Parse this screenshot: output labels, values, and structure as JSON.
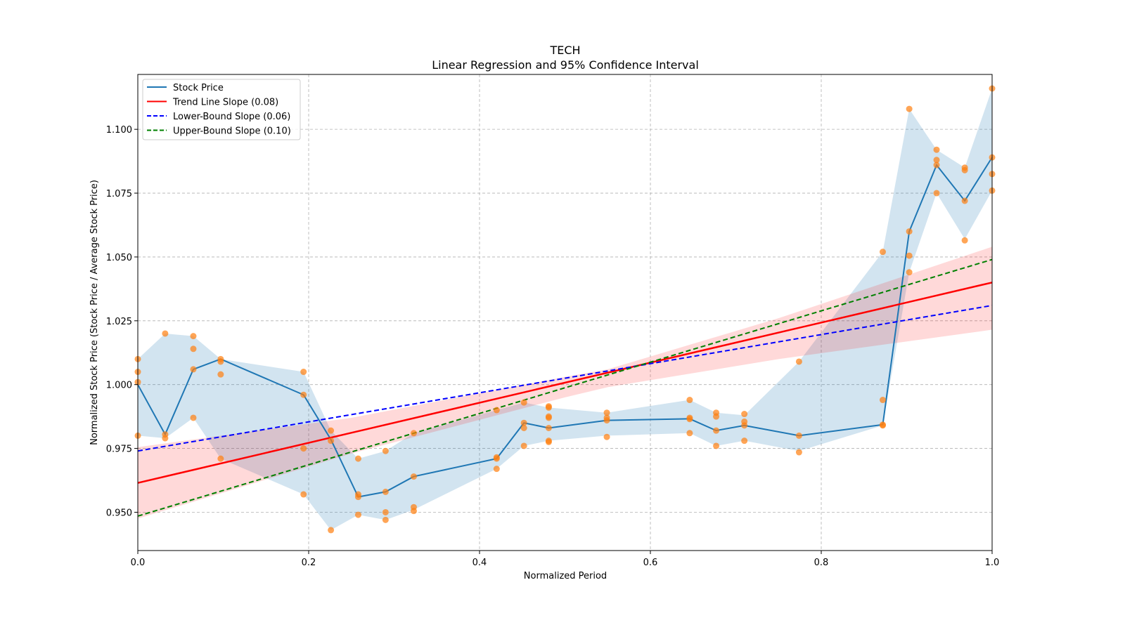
{
  "chart_data": {
    "type": "line",
    "title": "TECH",
    "subtitle": "Linear Regression and 95% Confidence Interval",
    "xlabel": "Normalized Period",
    "ylabel": "Normalized Stock Price (Stock Price / Average Stock Price)",
    "xlim": [
      0.0,
      1.0
    ],
    "ylim": [
      0.935,
      1.1215
    ],
    "xticks": [
      0.0,
      0.2,
      0.4,
      0.6,
      0.8,
      1.0
    ],
    "xtick_labels": [
      "0.0",
      "0.2",
      "0.4",
      "0.6",
      "0.8",
      "1.0"
    ],
    "yticks": [
      0.95,
      0.975,
      1.0,
      1.025,
      1.05,
      1.075,
      1.1
    ],
    "ytick_labels": [
      "0.950",
      "0.975",
      "1.000",
      "1.025",
      "1.050",
      "1.075",
      "1.100"
    ],
    "grid": true,
    "legend_position": "top-left",
    "colors": {
      "stock_line": "#1f77b4",
      "stock_band": "#1f77b4",
      "scatter": "#ff7f0e",
      "trend": "#ff0000",
      "lower": "#0000ff",
      "upper": "#008000",
      "trend_band": "#ff0000"
    },
    "legend": [
      {
        "label": "Stock Price",
        "style": "solid",
        "color": "#1f77b4"
      },
      {
        "label": "Trend Line Slope (0.08)",
        "style": "solid",
        "color": "#ff0000"
      },
      {
        "label": "Lower-Bound Slope (0.06)",
        "style": "dashed",
        "color": "#0000ff"
      },
      {
        "label": "Upper-Bound Slope (0.10)",
        "style": "dashed",
        "color": "#008000"
      }
    ],
    "series": [
      {
        "name": "Stock Price",
        "x": [
          0.0,
          0.032,
          0.065,
          0.097,
          0.194,
          0.226,
          0.258,
          0.29,
          0.323,
          0.42,
          0.452,
          0.481,
          0.549,
          0.646,
          0.677,
          0.71,
          0.774,
          0.872,
          0.903,
          0.935,
          0.968,
          1.0
        ],
        "y": [
          1.0,
          0.9805,
          1.006,
          1.01,
          0.996,
          0.9785,
          0.956,
          0.958,
          0.964,
          0.971,
          0.985,
          0.983,
          0.986,
          0.9866,
          0.982,
          0.984,
          0.98,
          0.9843,
          1.06,
          1.086,
          1.072,
          1.089
        ],
        "band_lower": [
          0.98,
          0.979,
          0.987,
          0.971,
          0.957,
          0.943,
          0.949,
          0.947,
          0.951,
          0.967,
          0.976,
          0.978,
          0.98,
          0.981,
          0.976,
          0.978,
          0.974,
          0.984,
          1.044,
          1.075,
          1.057,
          1.076
        ],
        "band_upper": [
          1.01,
          1.02,
          1.019,
          1.01,
          1.005,
          0.982,
          0.971,
          0.974,
          0.981,
          0.99,
          0.993,
          0.991,
          0.989,
          0.994,
          0.989,
          0.988,
          1.009,
          1.052,
          1.108,
          1.092,
          1.085,
          1.116
        ]
      }
    ],
    "scatter_points": [
      [
        0.0,
        1.01
      ],
      [
        0.0,
        1.005
      ],
      [
        0.0,
        1.001
      ],
      [
        0.0,
        0.98
      ],
      [
        0.032,
        1.02
      ],
      [
        0.032,
        0.9805
      ],
      [
        0.032,
        0.979
      ],
      [
        0.065,
        1.019
      ],
      [
        0.065,
        1.014
      ],
      [
        0.065,
        1.006
      ],
      [
        0.065,
        0.987
      ],
      [
        0.097,
        1.01
      ],
      [
        0.097,
        1.009
      ],
      [
        0.097,
        1.004
      ],
      [
        0.097,
        0.971
      ],
      [
        0.194,
        1.005
      ],
      [
        0.194,
        0.996
      ],
      [
        0.194,
        0.975
      ],
      [
        0.194,
        0.957
      ],
      [
        0.226,
        0.982
      ],
      [
        0.226,
        0.978
      ],
      [
        0.226,
        0.943
      ],
      [
        0.258,
        0.971
      ],
      [
        0.258,
        0.957
      ],
      [
        0.258,
        0.956
      ],
      [
        0.258,
        0.949
      ],
      [
        0.29,
        0.974
      ],
      [
        0.29,
        0.958
      ],
      [
        0.29,
        0.95
      ],
      [
        0.29,
        0.947
      ],
      [
        0.323,
        0.981
      ],
      [
        0.323,
        0.964
      ],
      [
        0.323,
        0.952
      ],
      [
        0.323,
        0.9505
      ],
      [
        0.42,
        0.99
      ],
      [
        0.42,
        0.9715
      ],
      [
        0.42,
        0.971
      ],
      [
        0.42,
        0.967
      ],
      [
        0.452,
        0.993
      ],
      [
        0.452,
        0.985
      ],
      [
        0.452,
        0.983
      ],
      [
        0.452,
        0.976
      ],
      [
        0.481,
        0.9915
      ],
      [
        0.481,
        0.991
      ],
      [
        0.481,
        0.9875
      ],
      [
        0.481,
        0.987
      ],
      [
        0.481,
        0.983
      ],
      [
        0.481,
        0.978
      ],
      [
        0.481,
        0.9775
      ],
      [
        0.549,
        0.989
      ],
      [
        0.549,
        0.987
      ],
      [
        0.549,
        0.986
      ],
      [
        0.549,
        0.9795
      ],
      [
        0.646,
        0.994
      ],
      [
        0.646,
        0.987
      ],
      [
        0.646,
        0.9865
      ],
      [
        0.646,
        0.981
      ],
      [
        0.677,
        0.989
      ],
      [
        0.677,
        0.9875
      ],
      [
        0.677,
        0.982
      ],
      [
        0.677,
        0.976
      ],
      [
        0.71,
        0.9885
      ],
      [
        0.71,
        0.9855
      ],
      [
        0.71,
        0.984
      ],
      [
        0.71,
        0.978
      ],
      [
        0.774,
        1.009
      ],
      [
        0.774,
        0.98
      ],
      [
        0.774,
        0.9735
      ],
      [
        0.872,
        1.052
      ],
      [
        0.872,
        0.994
      ],
      [
        0.872,
        0.9843
      ],
      [
        0.872,
        0.984
      ],
      [
        0.903,
        1.108
      ],
      [
        0.903,
        1.06
      ],
      [
        0.903,
        1.0505
      ],
      [
        0.903,
        1.044
      ],
      [
        0.935,
        1.092
      ],
      [
        0.935,
        1.088
      ],
      [
        0.935,
        1.086
      ],
      [
        0.935,
        1.075
      ],
      [
        0.968,
        1.085
      ],
      [
        0.968,
        1.084
      ],
      [
        0.968,
        1.072
      ],
      [
        0.968,
        1.0565
      ],
      [
        1.0,
        1.116
      ],
      [
        1.0,
        1.089
      ],
      [
        1.0,
        1.0825
      ],
      [
        1.0,
        1.076
      ]
    ],
    "trend_line": {
      "intercept": 0.9615,
      "slope": 0.0785
    },
    "trend_band": {
      "x": [
        0.0,
        0.25,
        0.5,
        0.55,
        0.75,
        1.0
      ],
      "lower": [
        0.9475,
        0.973,
        0.995,
        0.999,
        1.01,
        1.0215
      ],
      "upper": [
        0.9755,
        0.987,
        1.003,
        1.006,
        1.026,
        1.054
      ]
    },
    "lower_bound_line": {
      "intercept": 0.974,
      "slope": 0.057
    },
    "upper_bound_line": {
      "intercept": 0.9485,
      "slope": 0.1005
    }
  }
}
